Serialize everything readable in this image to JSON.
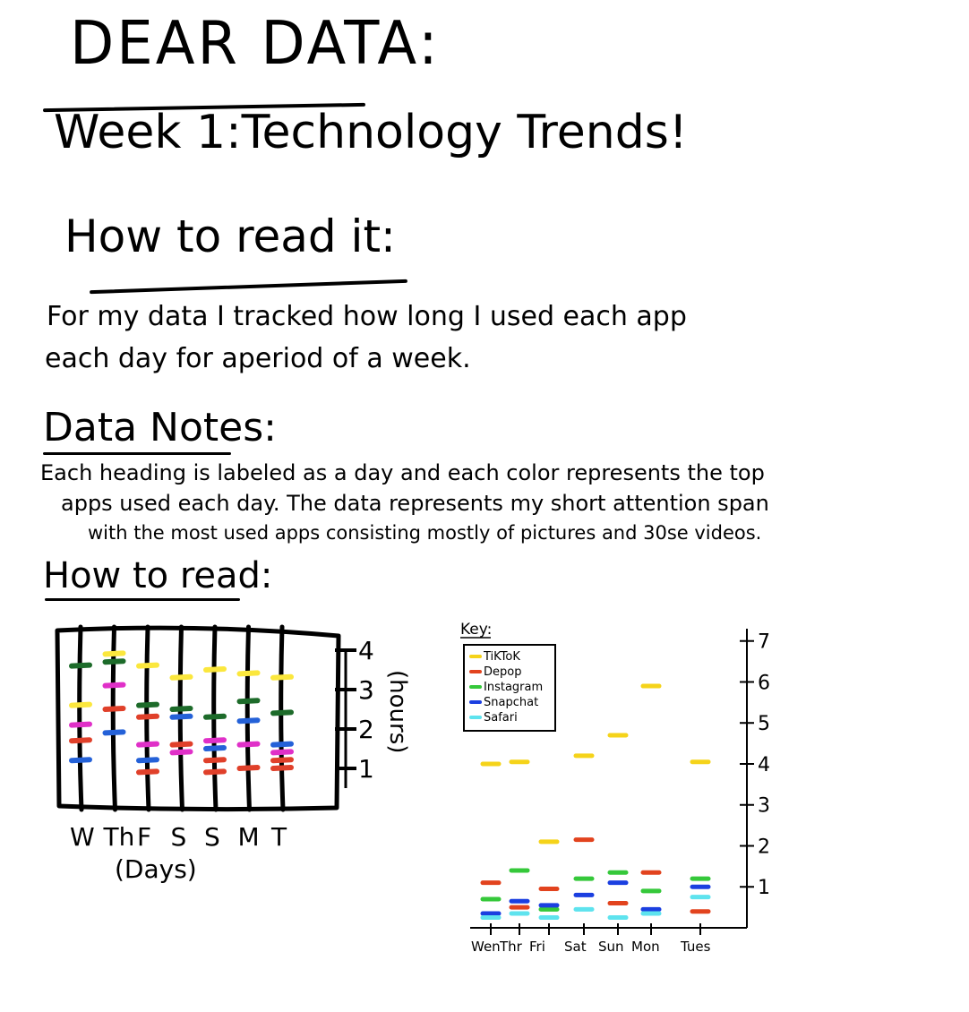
{
  "page": {
    "title": "DEAR DATA:",
    "subtitle": "Week 1:Technology Trends!",
    "how_to_read_heading": "How to read it:",
    "intro_line1": "For my data I tracked how long I used each app",
    "intro_line2": "each day for aperiod of a week.",
    "data_notes_heading": "Data Notes:",
    "notes_line1": "Each heading is labeled as a day and each color represents the top",
    "notes_line2": "apps used each day. The data represents my short attention span",
    "notes_line3": "with the most used apps consisting mostly of pictures and 30se videos.",
    "how_to_read_heading2": "How to read:"
  },
  "colors": {
    "tiktok": "#f5d31a",
    "depop": "#e2431e",
    "instagram": "#35c83a",
    "snapchat": "#1b3fe0",
    "safari": "#5ee3ee",
    "sketch_tiktok": "#fbe73d",
    "sketch_depop": "#e0402a",
    "sketch_instagram": "#1d6b2a",
    "sketch_snapchat": "#2461d8",
    "sketch_magenta": "#e030c8"
  },
  "chart_data": [
    {
      "type": "scatter",
      "title": "",
      "xlabel": "(Days)",
      "ylabel": "(hours)",
      "categories": [
        "W",
        "Th",
        "F",
        "S",
        "S",
        "M",
        "T"
      ],
      "y_ticks": [
        "1",
        "2",
        "3",
        "4"
      ],
      "ylim": [
        0,
        4.5
      ],
      "series": [
        {
          "color_key": "sketch_tiktok",
          "values": [
            2.6,
            3.9,
            3.6,
            3.3,
            3.5,
            3.4,
            3.3
          ]
        },
        {
          "color_key": "sketch_instagram",
          "values": [
            3.6,
            3.7,
            2.6,
            2.5,
            2.3,
            2.7,
            2.4
          ]
        },
        {
          "color_key": "sketch_magenta",
          "values": [
            2.1,
            3.1,
            1.6,
            1.4,
            1.7,
            1.6,
            1.4
          ]
        },
        {
          "color_key": "sketch_depop",
          "values": [
            1.7,
            2.5,
            2.3,
            1.6,
            0.9,
            1.0,
            1.0
          ]
        },
        {
          "color_key": "sketch_snapchat",
          "values": [
            1.2,
            1.9,
            1.2,
            2.3,
            1.5,
            2.2,
            1.6
          ]
        },
        {
          "color_key": "sketch_depop",
          "values": [
            null,
            null,
            0.9,
            null,
            1.2,
            null,
            1.2
          ]
        }
      ]
    },
    {
      "type": "scatter",
      "title": "",
      "xlabel": "",
      "ylabel": "",
      "key_heading": "Key:",
      "categories": [
        "Wen",
        "Thr",
        "Fri",
        "Sat",
        "Sun",
        "Mon",
        "Tues"
      ],
      "y_ticks": [
        "1",
        "2",
        "3",
        "4",
        "5",
        "6",
        "7"
      ],
      "ylim": [
        0,
        7.3
      ],
      "series": [
        {
          "name": "TiKToK",
          "color_key": "tiktok",
          "values": [
            4.0,
            4.05,
            2.1,
            4.2,
            4.7,
            5.9,
            4.05
          ]
        },
        {
          "name": "Depop",
          "color_key": "depop",
          "values": [
            1.1,
            0.5,
            0.95,
            2.15,
            0.6,
            1.35,
            0.4
          ]
        },
        {
          "name": "Instagram",
          "color_key": "instagram",
          "values": [
            0.7,
            1.4,
            0.45,
            1.2,
            1.35,
            0.9,
            1.2
          ]
        },
        {
          "name": "Snapchat",
          "color_key": "snapchat",
          "values": [
            0.35,
            0.65,
            0.55,
            0.8,
            1.1,
            0.45,
            1.0
          ]
        },
        {
          "name": "Safari",
          "color_key": "safari",
          "values": [
            0.25,
            0.35,
            0.25,
            0.45,
            0.25,
            0.35,
            0.75
          ]
        }
      ]
    }
  ]
}
